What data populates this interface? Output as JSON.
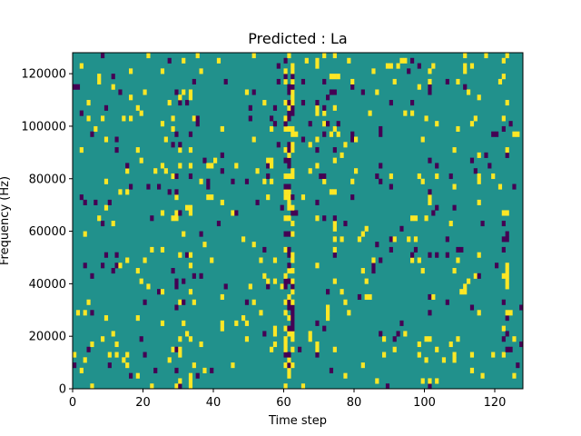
{
  "chart_data": {
    "type": "heatmap",
    "title": "Predicted : La",
    "xlabel": "Time step",
    "ylabel": "Frequency (Hz)",
    "xlim": [
      0,
      128
    ],
    "ylim": [
      0,
      128000
    ],
    "x_ticks": [
      0,
      20,
      40,
      60,
      80,
      100,
      120
    ],
    "y_ticks": [
      0,
      20000,
      40000,
      60000,
      80000,
      100000,
      120000
    ],
    "y_tick_labels": [
      "0",
      "20000",
      "40000",
      "60000",
      "80000",
      "100000",
      "120000"
    ],
    "colormap": "viridis",
    "value_range": [
      -1,
      1
    ],
    "colors": {
      "low": "#440154",
      "mid": "#21918c",
      "high": "#fde725"
    },
    "grid": false,
    "rows": 64,
    "cols": 128,
    "background_value": 0,
    "seed": 7,
    "dense_columns": [
      {
        "x": 29,
        "density": 0.22
      },
      {
        "x": 30,
        "density": 0.22
      },
      {
        "x": 33,
        "density": 0.18
      },
      {
        "x": 55,
        "density": 0.15
      },
      {
        "x": 60,
        "density": 0.55
      },
      {
        "x": 61,
        "density": 0.65
      },
      {
        "x": 62,
        "density": 0.55
      },
      {
        "x": 69,
        "density": 0.3
      },
      {
        "x": 71,
        "density": 0.28
      },
      {
        "x": 74,
        "density": 0.2
      },
      {
        "x": 101,
        "density": 0.15
      },
      {
        "x": 122,
        "density": 0.18
      },
      {
        "x": 123,
        "density": 0.18
      }
    ],
    "sparse_density": 0.055
  }
}
